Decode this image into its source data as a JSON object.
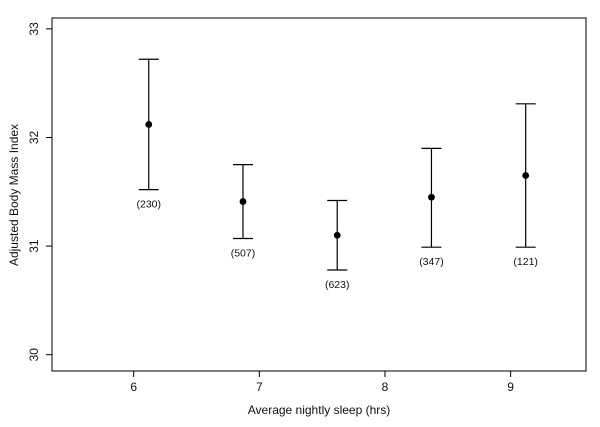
{
  "chart_data": {
    "type": "scatter",
    "title": "",
    "xlabel": "Average nightly sleep (hrs)",
    "ylabel": "Adjusted Body Mass Index",
    "xlim": [
      5.35,
      9.6
    ],
    "ylim": [
      29.85,
      33.1
    ],
    "xticks": [
      6,
      7,
      8,
      9
    ],
    "yticks": [
      30,
      31,
      32,
      33
    ],
    "grid": false,
    "legend": "none",
    "colors": {
      "marker": "#000000",
      "axis": "#000000"
    },
    "series": [
      {
        "points": [
          {
            "x": 6.12,
            "y": 32.12,
            "lower": 31.52,
            "upper": 32.72,
            "n_label": "(230)"
          },
          {
            "x": 6.87,
            "y": 31.41,
            "lower": 31.07,
            "upper": 31.75,
            "n_label": "(507)"
          },
          {
            "x": 7.62,
            "y": 31.1,
            "lower": 30.78,
            "upper": 31.42,
            "n_label": "(623)"
          },
          {
            "x": 8.37,
            "y": 31.45,
            "lower": 30.99,
            "upper": 31.9,
            "n_label": "(347)"
          },
          {
            "x": 9.12,
            "y": 31.65,
            "lower": 30.99,
            "upper": 32.31,
            "n_label": "(121)"
          }
        ]
      }
    ]
  }
}
